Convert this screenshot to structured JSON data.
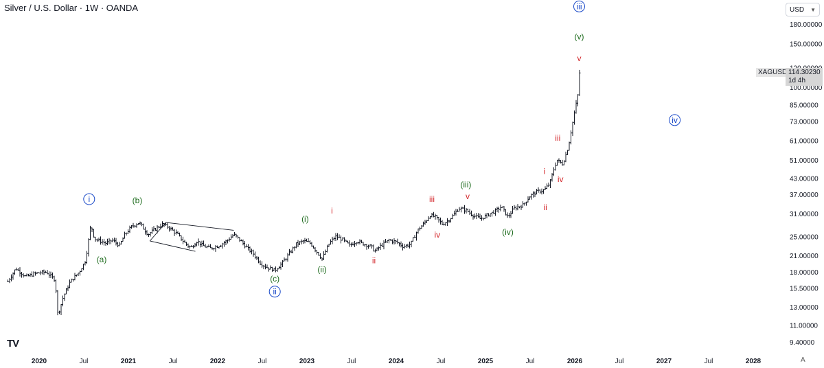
{
  "header": {
    "title": "Silver / U.S. Dollar · 1W · OANDA",
    "currency": "USD"
  },
  "price_badge": {
    "ticker": "XAGUSD",
    "price": "114.30230",
    "countdown": "1d 4h"
  },
  "auto_label": "A",
  "logo_text": "TV",
  "colors": {
    "blue": "#1848c8",
    "green": "#1d6b1d",
    "red": "#d3272b",
    "bars": "#131722"
  },
  "chart_data": {
    "type": "ohlc",
    "title": "Silver / U.S. Dollar · 1W · OANDA",
    "scale": "log",
    "y_tick_labels": [
      "180.00000",
      "150.00000",
      "120.00000",
      "100.00000",
      "85.00000",
      "73.00000",
      "61.00000",
      "51.00000",
      "43.00000",
      "37.00000",
      "31.00000",
      "25.00000",
      "21.00000",
      "18.00000",
      "15.50000",
      "13.00000",
      "11.00000",
      "9.40000"
    ],
    "y_ticks": [
      180,
      150,
      120,
      100,
      85,
      73,
      61,
      51,
      43,
      37,
      31,
      25,
      21,
      18,
      15.5,
      13,
      11,
      9.4
    ],
    "x_ticks": [
      {
        "label": "2020",
        "t": 2020.0,
        "year": true
      },
      {
        "label": "Jul",
        "t": 2020.5,
        "year": false
      },
      {
        "label": "2021",
        "t": 2021.0,
        "year": true
      },
      {
        "label": "Jul",
        "t": 2021.5,
        "year": false
      },
      {
        "label": "2022",
        "t": 2022.0,
        "year": true
      },
      {
        "label": "Jul",
        "t": 2022.5,
        "year": false
      },
      {
        "label": "2023",
        "t": 2023.0,
        "year": true
      },
      {
        "label": "Jul",
        "t": 2023.5,
        "year": false
      },
      {
        "label": "2024",
        "t": 2024.0,
        "year": true
      },
      {
        "label": "Jul",
        "t": 2024.5,
        "year": false
      },
      {
        "label": "2025",
        "t": 2025.0,
        "year": true
      },
      {
        "label": "Jul",
        "t": 2025.5,
        "year": false
      },
      {
        "label": "2026",
        "t": 2026.0,
        "year": true
      },
      {
        "label": "Jul",
        "t": 2026.5,
        "year": false
      },
      {
        "label": "2027",
        "t": 2027.0,
        "year": true
      },
      {
        "label": "Jul",
        "t": 2027.5,
        "year": false
      },
      {
        "label": "2028",
        "t": 2028.0,
        "year": true
      }
    ],
    "x_range": [
      2019.65,
      2028.35
    ],
    "anchors": [
      [
        2019.65,
        16.5
      ],
      [
        2019.74,
        18.6
      ],
      [
        2019.85,
        17.2
      ],
      [
        2019.97,
        17.8
      ],
      [
        2020.08,
        18.0
      ],
      [
        2020.18,
        16.7
      ],
      [
        2020.21,
        12.0
      ],
      [
        2020.27,
        14.3
      ],
      [
        2020.35,
        16.5
      ],
      [
        2020.45,
        18.0
      ],
      [
        2020.52,
        20.0
      ],
      [
        2020.58,
        28.0
      ],
      [
        2020.62,
        24.5
      ],
      [
        2020.68,
        24.0
      ],
      [
        2020.75,
        23.5
      ],
      [
        2020.82,
        24.2
      ],
      [
        2020.9,
        23.0
      ],
      [
        2020.96,
        25.5
      ],
      [
        2021.04,
        27.5
      ],
      [
        2021.12,
        28.5
      ],
      [
        2021.22,
        25.5
      ],
      [
        2021.28,
        26.5
      ],
      [
        2021.38,
        28.0
      ],
      [
        2021.45,
        27.3
      ],
      [
        2021.55,
        25.5
      ],
      [
        2021.62,
        23.8
      ],
      [
        2021.7,
        22.5
      ],
      [
        2021.77,
        24.0
      ],
      [
        2021.83,
        23.0
      ],
      [
        2021.92,
        22.4
      ],
      [
        2022.02,
        23.0
      ],
      [
        2022.1,
        24.0
      ],
      [
        2022.18,
        25.5
      ],
      [
        2022.25,
        24.2
      ],
      [
        2022.33,
        22.5
      ],
      [
        2022.4,
        21.3
      ],
      [
        2022.48,
        19.5
      ],
      [
        2022.55,
        18.8
      ],
      [
        2022.64,
        18.3
      ],
      [
        2022.72,
        19.5
      ],
      [
        2022.8,
        21.3
      ],
      [
        2022.88,
        23.3
      ],
      [
        2022.96,
        24.0
      ],
      [
        2023.04,
        23.5
      ],
      [
        2023.12,
        21.5
      ],
      [
        2023.17,
        20.3
      ],
      [
        2023.25,
        23.5
      ],
      [
        2023.32,
        25.0
      ],
      [
        2023.4,
        24.3
      ],
      [
        2023.48,
        23.0
      ],
      [
        2023.56,
        24.0
      ],
      [
        2023.64,
        23.3
      ],
      [
        2023.72,
        22.8
      ],
      [
        2023.76,
        21.8
      ],
      [
        2023.83,
        23.0
      ],
      [
        2023.92,
        24.2
      ],
      [
        2024.0,
        23.8
      ],
      [
        2024.08,
        22.8
      ],
      [
        2024.16,
        23.3
      ],
      [
        2024.24,
        26.5
      ],
      [
        2024.32,
        28.5
      ],
      [
        2024.38,
        30.5
      ],
      [
        2024.44,
        30.0
      ],
      [
        2024.52,
        28.0
      ],
      [
        2024.58,
        29.0
      ],
      [
        2024.64,
        30.5
      ],
      [
        2024.7,
        32.5
      ],
      [
        2024.78,
        32.0
      ],
      [
        2024.86,
        30.5
      ],
      [
        2024.94,
        29.5
      ],
      [
        2025.02,
        30.5
      ],
      [
        2025.1,
        31.5
      ],
      [
        2025.18,
        33.0
      ],
      [
        2025.25,
        30.0
      ],
      [
        2025.32,
        32.5
      ],
      [
        2025.42,
        33.5
      ],
      [
        2025.5,
        36.5
      ],
      [
        2025.58,
        38.0
      ],
      [
        2025.66,
        38.5
      ],
      [
        2025.72,
        41.0
      ],
      [
        2025.76,
        46.0
      ],
      [
        2025.8,
        51.0
      ],
      [
        2025.86,
        49.0
      ],
      [
        2025.89,
        52.0
      ],
      [
        2025.93,
        58.0
      ],
      [
        2025.97,
        70.0
      ],
      [
        2026.0,
        80.0
      ],
      [
        2026.04,
        95.0
      ],
      [
        2026.07,
        114.3
      ]
    ],
    "wedge_lines": [
      [
        [
          2021.42,
          28.5
        ],
        [
          2022.18,
          26.5
        ]
      ],
      [
        [
          2021.24,
          24.0
        ],
        [
          2021.75,
          21.8
        ]
      ],
      [
        [
          2021.42,
          28.5
        ],
        [
          2021.24,
          24.0
        ]
      ]
    ],
    "wave_labels": [
      {
        "text": "i",
        "t": 2020.56,
        "v": 35.4,
        "color": "blue",
        "circled": true
      },
      {
        "text": "ii",
        "t": 2022.64,
        "v": 15.0,
        "color": "blue",
        "circled": true
      },
      {
        "text": "iii",
        "t": 2026.05,
        "v": 212,
        "color": "blue",
        "circled": true
      },
      {
        "text": "iv",
        "t": 2027.12,
        "v": 73.8,
        "color": "blue",
        "circled": true
      },
      {
        "text": "(a)",
        "t": 2020.7,
        "v": 20.2,
        "color": "green",
        "circled": false
      },
      {
        "text": "(b)",
        "t": 2021.1,
        "v": 35.0,
        "color": "green",
        "circled": false
      },
      {
        "text": "(c)",
        "t": 2022.64,
        "v": 16.9,
        "color": "green",
        "circled": false
      },
      {
        "text": "(i)",
        "t": 2022.98,
        "v": 29.4,
        "color": "green",
        "circled": false
      },
      {
        "text": "(ii)",
        "t": 2023.17,
        "v": 18.4,
        "color": "green",
        "circled": false
      },
      {
        "text": "(iii)",
        "t": 2024.78,
        "v": 40.5,
        "color": "green",
        "circled": false
      },
      {
        "text": "(iv)",
        "t": 2025.25,
        "v": 26.1,
        "color": "green",
        "circled": false
      },
      {
        "text": "(v)",
        "t": 2026.05,
        "v": 160,
        "color": "green",
        "circled": false
      },
      {
        "text": "i",
        "t": 2023.28,
        "v": 31.8,
        "color": "red",
        "circled": false
      },
      {
        "text": "ii",
        "t": 2023.75,
        "v": 20.0,
        "color": "red",
        "circled": false
      },
      {
        "text": "iii",
        "t": 2024.4,
        "v": 35.4,
        "color": "red",
        "circled": false
      },
      {
        "text": "iv",
        "t": 2024.46,
        "v": 25.4,
        "color": "red",
        "circled": false
      },
      {
        "text": "v",
        "t": 2024.8,
        "v": 36.3,
        "color": "red",
        "circled": false
      },
      {
        "text": "i",
        "t": 2025.66,
        "v": 45.9,
        "color": "red",
        "circled": false
      },
      {
        "text": "ii",
        "t": 2025.67,
        "v": 32.8,
        "color": "red",
        "circled": false
      },
      {
        "text": "iii",
        "t": 2025.81,
        "v": 62.5,
        "color": "red",
        "circled": false
      },
      {
        "text": "iv",
        "t": 2025.84,
        "v": 42.6,
        "color": "red",
        "circled": false
      },
      {
        "text": "v",
        "t": 2026.05,
        "v": 131,
        "color": "red",
        "circled": false
      }
    ]
  }
}
